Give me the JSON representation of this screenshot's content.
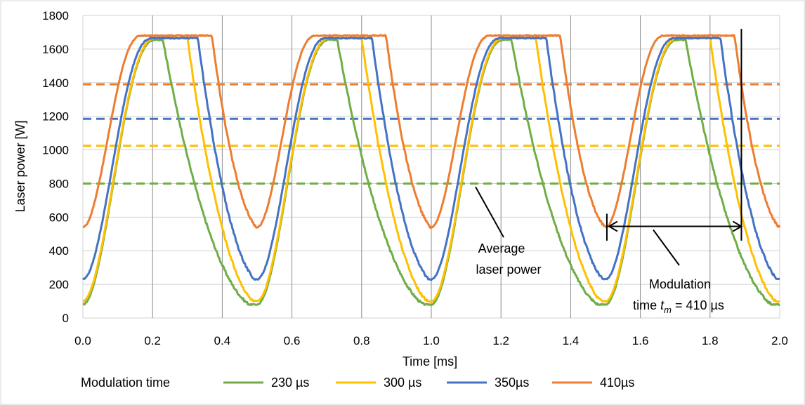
{
  "chart_data": {
    "type": "line",
    "title": "",
    "xlabel": "Time [ms]",
    "ylabel": "Laser power [W]",
    "xlim": [
      0,
      2.0
    ],
    "ylim": [
      0,
      1800
    ],
    "x_ticks": [
      "0.0",
      "0.2",
      "0.4",
      "0.6",
      "0.8",
      "1.0",
      "1.2",
      "1.4",
      "1.6",
      "1.8",
      "2.0"
    ],
    "y_ticks": [
      "0",
      "200",
      "400",
      "600",
      "800",
      "1000",
      "1200",
      "1400",
      "1600",
      "1800"
    ],
    "grid": "both",
    "legend_title": "Modulation time",
    "legend_position": "bottom",
    "period_ms": 0.5,
    "series": [
      {
        "name": "230 µs",
        "color": "#70AD47",
        "min": 80,
        "max": 1655,
        "rise_start": 0.0,
        "rise_end": 0.21,
        "fall_start": 0.23,
        "fall_end": 0.48,
        "average": 800
      },
      {
        "name": "300 µs",
        "color": "#FFC000",
        "min": 100,
        "max": 1665,
        "rise_start": 0.0,
        "rise_end": 0.21,
        "fall_start": 0.3,
        "fall_end": 0.49,
        "average": 1025
      },
      {
        "name": "350µs",
        "color": "#4472C4",
        "min": 230,
        "max": 1665,
        "rise_start": 0.0,
        "rise_end": 0.2,
        "fall_start": 0.33,
        "fall_end": 0.495,
        "average": 1185
      },
      {
        "name": "410µs",
        "color": "#ED7D31",
        "min": 540,
        "max": 1680,
        "rise_start": 0.0,
        "rise_end": 0.17,
        "fall_start": 0.37,
        "fall_end": 0.5,
        "average": 1390
      }
    ],
    "annotations": {
      "average_label": [
        "Average",
        "laser power"
      ],
      "modulation_label_line1": "Modulation",
      "modulation_label_prefix": "time ",
      "modulation_symbol": "t",
      "modulation_subscript": "m",
      "modulation_label_suffix": " = 410 µs",
      "arrow_start_ms": 1.51,
      "arrow_end_ms": 1.89,
      "arrow_level": 545
    }
  }
}
